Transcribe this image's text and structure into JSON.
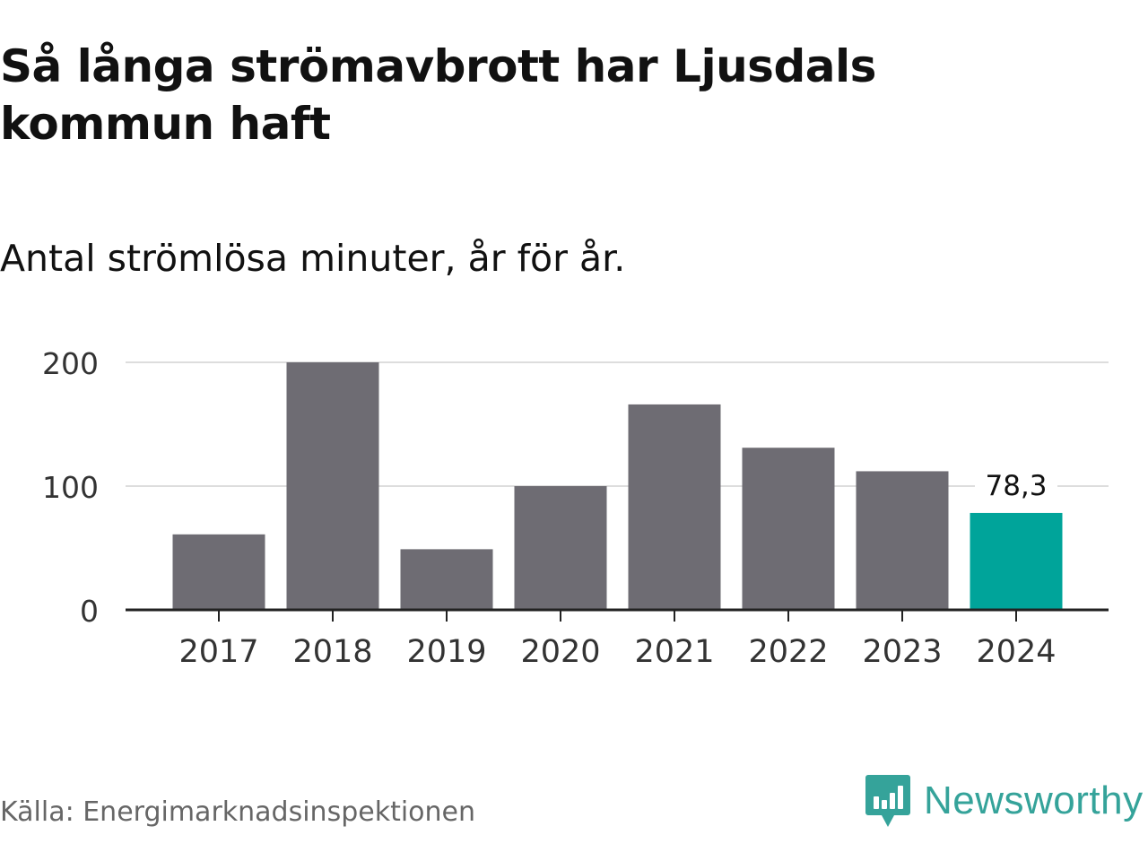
{
  "header": {
    "title": "Så långa strömavbrott har Ljusdals kommun haft",
    "subtitle": "Antal strömlösa minuter, år för år."
  },
  "footer": {
    "source": "Källa: Energimarknadsinspektionen",
    "brand": "Newsworthy",
    "brand_icon": "newsworthy-logo-icon"
  },
  "colors": {
    "bar": "#6e6c73",
    "highlight": "#00a49a",
    "brand": "#35a39a",
    "grid": "#dddddd",
    "axis": "#222222"
  },
  "chart_data": {
    "type": "bar",
    "title": "Så långa strömavbrott har Ljusdals kommun haft",
    "subtitle": "Antal strömlösa minuter, år för år.",
    "xlabel": "",
    "ylabel": "",
    "categories": [
      "2017",
      "2018",
      "2019",
      "2020",
      "2021",
      "2022",
      "2023",
      "2024"
    ],
    "values": [
      61,
      200,
      49,
      100,
      166,
      131,
      112,
      78.3
    ],
    "highlight_index": 7,
    "data_labels": [
      {
        "index": 7,
        "text": "78,3"
      }
    ],
    "yticks": [
      0,
      100,
      200
    ],
    "ytick_labels": [
      "0",
      "100",
      "200"
    ],
    "ylim": [
      0,
      200
    ],
    "grid": true,
    "legend": "none"
  }
}
